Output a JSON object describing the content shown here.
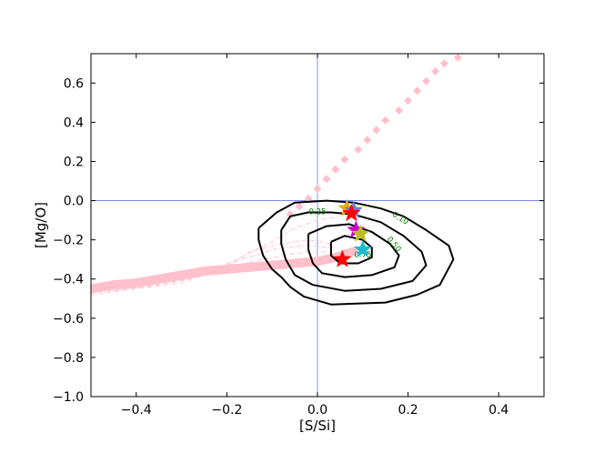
{
  "chart_data": {
    "type": "scatter",
    "xlabel": "[S/Si]",
    "ylabel": "[Mg/O]",
    "xlim": [
      -0.5,
      0.5
    ],
    "ylim": [
      -1.0,
      0.75
    ],
    "xticks": [
      -0.4,
      -0.2,
      0.0,
      0.2,
      0.4
    ],
    "yticks": [
      -1.0,
      -0.8,
      -0.6,
      -0.4,
      -0.2,
      0.0,
      0.2,
      0.4,
      0.6
    ],
    "xtick_labels": [
      "−0.4",
      "−0.2",
      "0.0",
      "0.2",
      "0.4"
    ],
    "ytick_labels": [
      "−1.0",
      "−0.8",
      "−0.6",
      "−0.4",
      "−0.2",
      "0.0",
      "0.2",
      "0.4",
      "0.6"
    ],
    "reference_lines": {
      "x": 0.0,
      "y": 0.0,
      "color": "#6b7bdc"
    },
    "grid": false,
    "colors": {
      "contour": "#000000",
      "contour_label": "#008000",
      "pink": "#ffc0cb",
      "ref_line": "#6b7bdc"
    },
    "contours": [
      {
        "level": "0.10",
        "points": [
          [
            -0.13,
            -0.14
          ],
          [
            -0.09,
            -0.06
          ],
          [
            -0.05,
            -0.01
          ],
          [
            0.02,
            0.0
          ],
          [
            0.08,
            -0.01
          ],
          [
            0.14,
            -0.04
          ],
          [
            0.19,
            -0.08
          ],
          [
            0.24,
            -0.15
          ],
          [
            0.29,
            -0.23
          ],
          [
            0.3,
            -0.3
          ],
          [
            0.27,
            -0.43
          ],
          [
            0.22,
            -0.48
          ],
          [
            0.15,
            -0.52
          ],
          [
            0.03,
            -0.53
          ],
          [
            -0.03,
            -0.49
          ],
          [
            -0.06,
            -0.44
          ],
          [
            -0.08,
            -0.39
          ],
          [
            -0.1,
            -0.35
          ],
          [
            -0.12,
            -0.28
          ],
          [
            -0.13,
            -0.2
          ],
          [
            -0.13,
            -0.14
          ]
        ]
      },
      {
        "level": "0.25",
        "points": [
          [
            -0.08,
            -0.15
          ],
          [
            -0.06,
            -0.08
          ],
          [
            -0.02,
            -0.06
          ],
          [
            0.03,
            -0.06
          ],
          [
            0.08,
            -0.07
          ],
          [
            0.14,
            -0.11
          ],
          [
            0.19,
            -0.18
          ],
          [
            0.23,
            -0.26
          ],
          [
            0.24,
            -0.33
          ],
          [
            0.21,
            -0.41
          ],
          [
            0.14,
            -0.45
          ],
          [
            0.06,
            -0.46
          ],
          [
            -0.01,
            -0.43
          ],
          [
            -0.05,
            -0.38
          ],
          [
            -0.07,
            -0.3
          ],
          [
            -0.08,
            -0.22
          ],
          [
            -0.08,
            -0.15
          ]
        ]
      },
      {
        "level": "0.50",
        "points": [
          [
            -0.02,
            -0.17
          ],
          [
            0.02,
            -0.13
          ],
          [
            0.07,
            -0.12
          ],
          [
            0.12,
            -0.16
          ],
          [
            0.16,
            -0.22
          ],
          [
            0.18,
            -0.28
          ],
          [
            0.17,
            -0.34
          ],
          [
            0.12,
            -0.38
          ],
          [
            0.06,
            -0.39
          ],
          [
            0.01,
            -0.37
          ],
          [
            -0.01,
            -0.32
          ],
          [
            -0.02,
            -0.25
          ],
          [
            -0.02,
            -0.17
          ]
        ]
      },
      {
        "level": "0.75",
        "points": [
          [
            0.03,
            -0.21
          ],
          [
            0.06,
            -0.18
          ],
          [
            0.1,
            -0.2
          ],
          [
            0.12,
            -0.24
          ],
          [
            0.12,
            -0.29
          ],
          [
            0.09,
            -0.32
          ],
          [
            0.05,
            -0.32
          ],
          [
            0.03,
            -0.28
          ],
          [
            0.03,
            -0.21
          ]
        ]
      }
    ],
    "contour_labels": [
      {
        "text": "0.10",
        "x": 0.18,
        "y": -0.1,
        "angle": 32
      },
      {
        "text": "0.25",
        "x": 0.0,
        "y": -0.07,
        "angle": 0
      },
      {
        "text": "0.50",
        "x": 0.165,
        "y": -0.23,
        "angle": 50
      },
      {
        "text": "0.75",
        "x": 0.1,
        "y": -0.29,
        "angle": 0
      }
    ],
    "pink_diamond_track": {
      "x": [
        -0.06,
        -0.04,
        -0.02,
        0.0,
        0.02,
        0.04,
        0.06,
        0.09,
        0.11,
        0.13,
        0.15,
        0.18,
        0.2,
        0.22,
        0.24,
        0.26,
        0.28,
        0.31
      ],
      "y": [
        -0.07,
        -0.03,
        0.01,
        0.06,
        0.11,
        0.16,
        0.21,
        0.26,
        0.31,
        0.36,
        0.41,
        0.46,
        0.51,
        0.56,
        0.61,
        0.66,
        0.7,
        0.73
      ]
    },
    "pink_band": [
      [
        -0.5,
        -0.45
      ],
      [
        -0.45,
        -0.43
      ],
      [
        -0.4,
        -0.42
      ],
      [
        -0.35,
        -0.4
      ],
      [
        -0.3,
        -0.38
      ],
      [
        -0.25,
        -0.36
      ],
      [
        -0.2,
        -0.35
      ],
      [
        -0.15,
        -0.34
      ],
      [
        -0.1,
        -0.33
      ],
      [
        -0.05,
        -0.32
      ],
      [
        0.0,
        -0.31
      ],
      [
        0.04,
        -0.29
      ],
      [
        0.08,
        -0.26
      ]
    ],
    "pink_dashed_tracks": [
      [
        [
          -0.5,
          -0.48
        ],
        [
          -0.4,
          -0.45
        ],
        [
          -0.3,
          -0.42
        ],
        [
          -0.2,
          -0.34
        ],
        [
          -0.15,
          -0.26
        ],
        [
          -0.08,
          -0.22
        ],
        [
          -0.02,
          -0.2
        ],
        [
          0.03,
          -0.22
        ]
      ],
      [
        [
          -0.5,
          -0.47
        ],
        [
          -0.38,
          -0.44
        ],
        [
          -0.28,
          -0.4
        ],
        [
          -0.18,
          -0.31
        ],
        [
          -0.1,
          -0.25
        ],
        [
          -0.03,
          -0.23
        ],
        [
          0.04,
          -0.24
        ]
      ],
      [
        [
          -0.5,
          -0.46
        ],
        [
          -0.35,
          -0.43
        ],
        [
          -0.25,
          -0.38
        ],
        [
          -0.17,
          -0.29
        ],
        [
          -0.1,
          -0.21
        ],
        [
          -0.05,
          -0.14
        ],
        [
          0.0,
          -0.1
        ],
        [
          0.05,
          -0.08
        ]
      ],
      [
        [
          -0.45,
          -0.46
        ],
        [
          -0.32,
          -0.41
        ],
        [
          -0.22,
          -0.35
        ],
        [
          -0.12,
          -0.3
        ],
        [
          -0.05,
          -0.27
        ],
        [
          0.02,
          -0.26
        ]
      ]
    ],
    "points": [
      {
        "x": 0.065,
        "y": -0.04,
        "color": "#e6a817",
        "marker": "star"
      },
      {
        "x": 0.08,
        "y": -0.05,
        "color": "#6b7bdc",
        "marker": "star"
      },
      {
        "x": 0.075,
        "y": -0.065,
        "color": "#ff0000",
        "marker": "star"
      },
      {
        "x": 0.085,
        "y": -0.15,
        "color": "#cc00cc",
        "marker": "star"
      },
      {
        "x": 0.095,
        "y": -0.17,
        "color": "#bcbd22",
        "marker": "star"
      },
      {
        "x": 0.1,
        "y": -0.25,
        "color": "#17becf",
        "marker": "star"
      },
      {
        "x": 0.055,
        "y": -0.3,
        "color": "#ff0000",
        "marker": "star"
      }
    ]
  }
}
